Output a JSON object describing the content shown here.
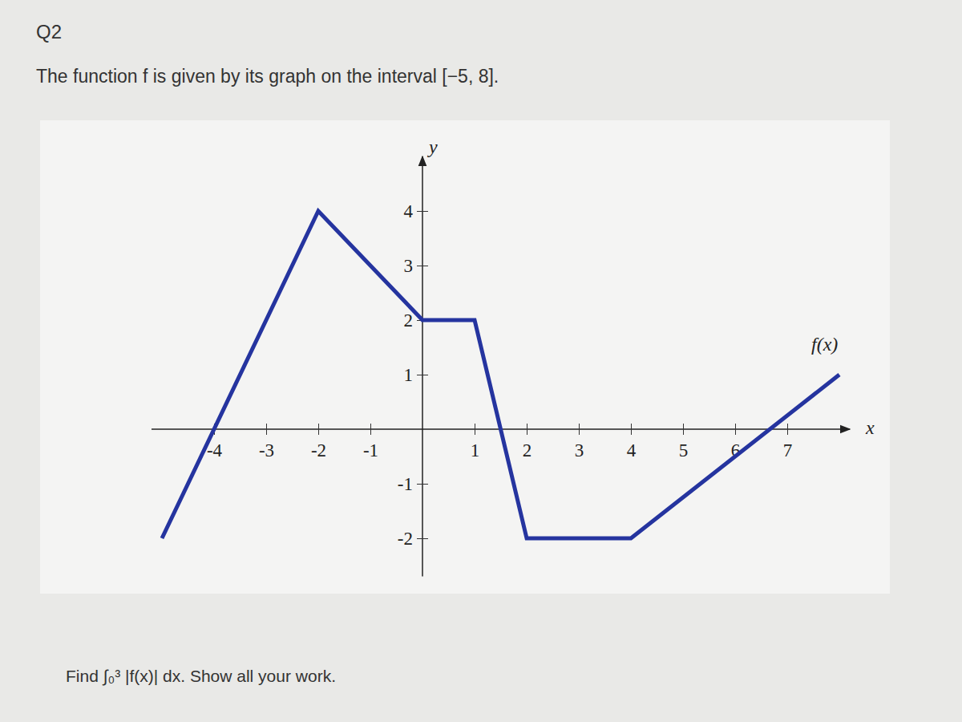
{
  "question": {
    "number": "Q2",
    "text": "The function f is given by its graph on the interval [−5, 8].",
    "prompt": "Find ∫₀³ |f(x)| dx. Show all your work."
  },
  "chart_data": {
    "type": "line",
    "x": [
      -5,
      -2,
      0,
      1,
      2,
      4,
      8
    ],
    "series": [
      {
        "name": "f(x)",
        "color": "#25349f",
        "values": [
          -2,
          4,
          2,
          2,
          -2,
          -2,
          1
        ]
      }
    ],
    "xlabel": "x",
    "ylabel": "y",
    "xlim": [
      -5.2,
      8.2
    ],
    "ylim": [
      -2.7,
      5
    ],
    "xticks": [
      -4,
      -3,
      -2,
      -1,
      1,
      2,
      3,
      4,
      5,
      6,
      7
    ],
    "yticks": [
      -2,
      -1,
      1,
      2,
      3,
      4
    ],
    "grid": false
  }
}
